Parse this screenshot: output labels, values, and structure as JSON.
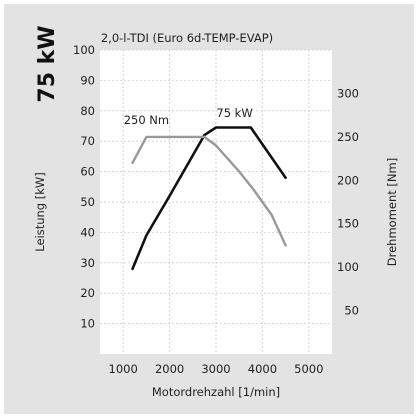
{
  "badge": {
    "power": "75 kW"
  },
  "chart_data": {
    "type": "line",
    "title": "2,0-l-TDI (Euro 6d-TEMP-EVAP)",
    "xlabel": "Motordrehzahl [1/min]",
    "ylabel_left": "Leistung [kW]",
    "ylabel_right": "Drehmoment [Nm]",
    "xlim": [
      500,
      5500
    ],
    "ylim_left": [
      0,
      100
    ],
    "ylim_right": [
      0,
      350
    ],
    "x_ticks": [
      1000,
      2000,
      3000,
      4000,
      5000
    ],
    "y_left_ticks": [
      10,
      20,
      30,
      40,
      50,
      60,
      70,
      80,
      90,
      100
    ],
    "y_right_ticks": [
      50,
      100,
      150,
      200,
      250,
      300
    ],
    "grid": true,
    "series": [
      {
        "axis": "left",
        "color": "#111111",
        "points": [
          [
            1200,
            28
          ],
          [
            1500,
            39
          ],
          [
            2000,
            52
          ],
          [
            2750,
            72
          ],
          [
            3000,
            74.5
          ],
          [
            3750,
            74.5
          ],
          [
            4500,
            58
          ]
        ]
      },
      {
        "axis": "right",
        "color": "#999999",
        "points": [
          [
            1200,
            220
          ],
          [
            1500,
            250
          ],
          [
            2750,
            250
          ],
          [
            3000,
            240
          ],
          [
            3500,
            210
          ],
          [
            3800,
            190
          ],
          [
            4200,
            160
          ],
          [
            4500,
            125
          ]
        ]
      }
    ],
    "annotations": [
      {
        "text": "75 kW",
        "x": 3400,
        "y": 78,
        "axis": "left"
      },
      {
        "text": "250 Nm",
        "x": 1500,
        "y": 265,
        "axis": "right"
      }
    ]
  }
}
